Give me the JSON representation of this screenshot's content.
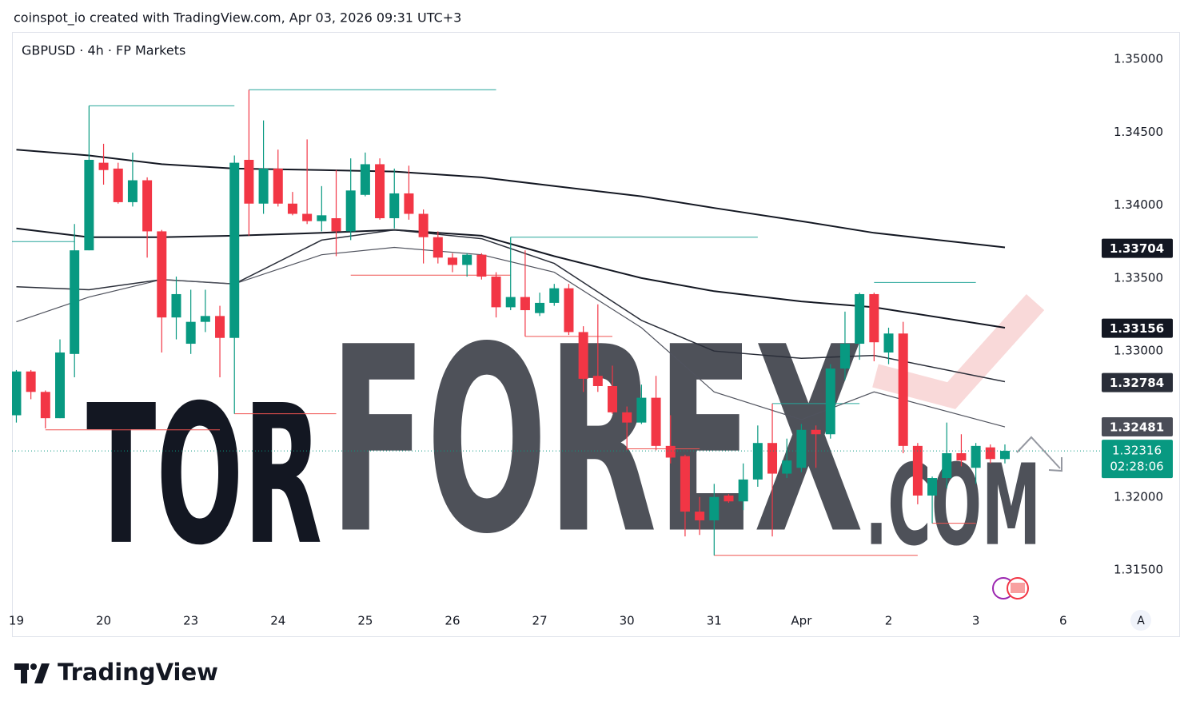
{
  "header": {
    "attribution": "coinspot_io created with TradingView.com, Apr 03, 2026 09:31 UTC+3"
  },
  "footer": {
    "logo": "TradingView"
  },
  "button": "A",
  "watermark": [
    "TOR",
    "FOREX",
    ".COM"
  ],
  "chart_data": {
    "type": "candlestick",
    "title": "GBPUSD · 4h · FP Markets",
    "up_color": "#089981",
    "down_color": "#f23645",
    "x": [
      0,
      1,
      2,
      3,
      4,
      5,
      6,
      7,
      8,
      9,
      10,
      11,
      12,
      13,
      14,
      15,
      16,
      17,
      18,
      19,
      20,
      21,
      22,
      23,
      24,
      25,
      26,
      27,
      28,
      29,
      30,
      31,
      32,
      33,
      34,
      35,
      36,
      37,
      38,
      39,
      40,
      41,
      42,
      43,
      44,
      45,
      46,
      47,
      48,
      49,
      50,
      51,
      52,
      53,
      54,
      55,
      56,
      57,
      58,
      59,
      60,
      61,
      62,
      63,
      64,
      65,
      66,
      67,
      68
    ],
    "open": [
      1.3256,
      1.3286,
      1.3272,
      1.3254,
      1.3298,
      1.3369,
      1.3429,
      1.3425,
      1.3402,
      1.3417,
      1.3382,
      1.3323,
      1.3305,
      1.332,
      1.3324,
      1.3309,
      1.3431,
      1.3401,
      1.3425,
      1.3401,
      1.3394,
      1.3389,
      1.3391,
      1.3382,
      1.3407,
      1.3428,
      1.3391,
      1.3408,
      1.3394,
      1.3378,
      1.3364,
      1.3359,
      1.3366,
      1.3351,
      1.333,
      1.3337,
      1.3326,
      1.3333,
      1.3343,
      1.3313,
      1.3283,
      1.3276,
      1.3258,
      1.3251,
      1.3268,
      1.3235,
      1.3228,
      1.319,
      1.3184,
      1.3201,
      1.3197,
      1.3212,
      1.3237,
      1.3216,
      1.322,
      1.3246,
      1.3243,
      1.3288,
      1.3305,
      1.3339,
      1.3299,
      1.3312,
      1.3235,
      1.3201,
      1.3213,
      1.323,
      1.322,
      1.3234,
      1.3226
    ],
    "high": [
      1.3287,
      1.3287,
      1.3273,
      1.3308,
      1.3387,
      1.3468,
      1.3442,
      1.3429,
      1.3436,
      1.3419,
      1.3383,
      1.3351,
      1.3342,
      1.3342,
      1.3331,
      1.3434,
      1.3479,
      1.3458,
      1.3438,
      1.3409,
      1.3445,
      1.3413,
      1.3424,
      1.3432,
      1.3436,
      1.3432,
      1.3425,
      1.3427,
      1.3397,
      1.3382,
      1.3367,
      1.3367,
      1.3367,
      1.3354,
      1.3378,
      1.3369,
      1.334,
      1.3346,
      1.3346,
      1.3317,
      1.3332,
      1.329,
      1.3262,
      1.3277,
      1.3283,
      1.3256,
      1.3229,
      1.32,
      1.3209,
      1.3202,
      1.3223,
      1.3249,
      1.3264,
      1.324,
      1.325,
      1.3249,
      1.3291,
      1.3327,
      1.334,
      1.334,
      1.3316,
      1.332,
      1.3237,
      1.3214,
      1.3251,
      1.3243,
      1.3237,
      1.3236,
      1.3236
    ],
    "low": [
      1.3251,
      1.3267,
      1.3247,
      1.3254,
      1.3282,
      1.3369,
      1.3414,
      1.3401,
      1.3399,
      1.3364,
      1.3299,
      1.3308,
      1.3298,
      1.3313,
      1.3282,
      1.3257,
      1.3379,
      1.3394,
      1.3399,
      1.3393,
      1.3387,
      1.3382,
      1.3365,
      1.3376,
      1.3406,
      1.339,
      1.3384,
      1.339,
      1.336,
      1.336,
      1.3354,
      1.3351,
      1.3349,
      1.3323,
      1.3328,
      1.331,
      1.3324,
      1.3331,
      1.3311,
      1.3272,
      1.3272,
      1.3257,
      1.3232,
      1.325,
      1.3232,
      1.3223,
      1.3173,
      1.3174,
      1.316,
      1.3196,
      1.3191,
      1.3207,
      1.3173,
      1.3213,
      1.3217,
      1.322,
      1.324,
      1.328,
      1.3294,
      1.3293,
      1.3291,
      1.323,
      1.3195,
      1.3182,
      1.3206,
      1.3221,
      1.3209,
      1.3223,
      1.3223
    ],
    "close": [
      1.3286,
      1.3272,
      1.3254,
      1.3299,
      1.3369,
      1.3431,
      1.3424,
      1.3402,
      1.3417,
      1.3382,
      1.3323,
      1.3339,
      1.332,
      1.3324,
      1.3309,
      1.3429,
      1.3401,
      1.3425,
      1.3401,
      1.3394,
      1.3389,
      1.3393,
      1.3382,
      1.341,
      1.3428,
      1.3391,
      1.3408,
      1.3394,
      1.3378,
      1.3364,
      1.3359,
      1.3366,
      1.3351,
      1.333,
      1.3337,
      1.3328,
      1.3333,
      1.3343,
      1.3313,
      1.3281,
      1.3276,
      1.3258,
      1.3251,
      1.3268,
      1.3235,
      1.3227,
      1.319,
      1.3184,
      1.32,
      1.3197,
      1.3212,
      1.3237,
      1.3216,
      1.3225,
      1.3246,
      1.3243,
      1.3288,
      1.3305,
      1.3339,
      1.3306,
      1.3312,
      1.3235,
      1.3201,
      1.3213,
      1.323,
      1.3225,
      1.3235,
      1.3226,
      1.32316
    ],
    "countdown": "02:28:06",
    "moving_averages": [
      {
        "color": "#131722",
        "width": 2,
        "x": [
          0,
          5,
          10,
          15,
          21,
          26,
          32,
          37,
          43,
          48,
          54,
          59,
          68
        ],
        "values": [
          1.3438,
          1.3434,
          1.3428,
          1.3425,
          1.3424,
          1.3423,
          1.3419,
          1.3413,
          1.3406,
          1.3398,
          1.3389,
          1.3381,
          1.3371
        ]
      },
      {
        "color": "#131722",
        "width": 2,
        "x": [
          0,
          5,
          10,
          15,
          21,
          26,
          32,
          37,
          43,
          48,
          54,
          59,
          68
        ],
        "values": [
          1.3384,
          1.3378,
          1.3378,
          1.3379,
          1.3381,
          1.3383,
          1.3379,
          1.3365,
          1.335,
          1.3341,
          1.3334,
          1.333,
          1.3316
        ]
      },
      {
        "color": "#2a2e39",
        "width": 1.5,
        "x": [
          0,
          5,
          10,
          15,
          21,
          26,
          32,
          37,
          43,
          48,
          54,
          59,
          68
        ],
        "values": [
          1.3344,
          1.3342,
          1.3349,
          1.3346,
          1.3376,
          1.3383,
          1.3377,
          1.336,
          1.3321,
          1.33,
          1.3295,
          1.3297,
          1.3279
        ]
      },
      {
        "color": "#50535e",
        "width": 1.2,
        "x": [
          0,
          5,
          10,
          15,
          21,
          26,
          32,
          37,
          43,
          48,
          54,
          59,
          68
        ],
        "values": [
          1.332,
          1.3337,
          1.3349,
          1.3346,
          1.3366,
          1.3371,
          1.3366,
          1.3354,
          1.3316,
          1.3272,
          1.3253,
          1.3272,
          1.3248
        ]
      }
    ],
    "levels": [
      {
        "start": 5,
        "end": 15,
        "value": 1.3468,
        "color": "#26a69a"
      },
      {
        "start": 16,
        "end": 33,
        "value": 1.3479,
        "color": "#26a69a"
      },
      {
        "start": -0.3,
        "end": 4,
        "value": 1.3375,
        "color": "#26a69a"
      },
      {
        "start": 34,
        "end": 51,
        "value": 1.3378,
        "color": "#26a69a"
      },
      {
        "start": 52,
        "end": 58,
        "value": 1.3264,
        "color": "#26a69a"
      },
      {
        "start": 59,
        "end": 66,
        "value": 1.3347,
        "color": "#26a69a"
      },
      {
        "start": 2,
        "end": 14,
        "value": 1.3246,
        "color": "#ef5350"
      },
      {
        "start": 15,
        "end": 22,
        "value": 1.3257,
        "color": "#ef5350"
      },
      {
        "start": 23,
        "end": 34,
        "value": 1.3352,
        "color": "#ef5350"
      },
      {
        "start": 35,
        "end": 41,
        "value": 1.331,
        "color": "#ef5350"
      },
      {
        "start": 42,
        "end": 47,
        "value": 1.3233,
        "color": "#ef5350"
      },
      {
        "start": 48,
        "end": 62,
        "value": 1.316,
        "color": "#ef5350"
      },
      {
        "start": 63,
        "end": 66,
        "value": 1.3182,
        "color": "#ef5350"
      }
    ],
    "price_labels": [
      {
        "value": 1.33704,
        "color": "#131722"
      },
      {
        "value": 1.33156,
        "color": "#131722"
      },
      {
        "value": 1.32784,
        "color": "#2a2e39"
      },
      {
        "value": 1.32481,
        "color": "#4a4d57"
      }
    ],
    "xlim": [
      -0.3,
      74.6
    ],
    "ylim": [
      1.31243,
      1.35186
    ],
    "yticks": [
      {
        "value": 1.35,
        "label": "1.35000"
      },
      {
        "value": 1.345,
        "label": "1.34500"
      },
      {
        "value": 1.34,
        "label": "1.34000"
      },
      {
        "value": 1.335,
        "label": "1.33500"
      },
      {
        "value": 1.33,
        "label": "1.33000"
      },
      {
        "value": 1.32,
        "label": "1.32000"
      },
      {
        "value": 1.315,
        "label": "1.31500"
      }
    ],
    "xticks": [
      {
        "value": 0,
        "label": "19"
      },
      {
        "value": 6,
        "label": "20"
      },
      {
        "value": 12,
        "label": "23"
      },
      {
        "value": 18,
        "label": "24"
      },
      {
        "value": 24,
        "label": "25"
      },
      {
        "value": 30,
        "label": "26"
      },
      {
        "value": 36,
        "label": "27"
      },
      {
        "value": 42,
        "label": "30"
      },
      {
        "value": 48,
        "label": "31"
      },
      {
        "value": 54,
        "label": "Apr"
      },
      {
        "value": 60,
        "label": "2"
      },
      {
        "value": 66,
        "label": "3"
      },
      {
        "value": 72,
        "label": "6"
      }
    ],
    "grid": false
  }
}
